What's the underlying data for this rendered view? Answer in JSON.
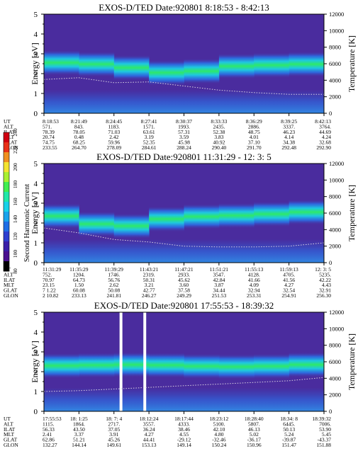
{
  "colorbar": {
    "label": "Second Harmonic Current",
    "ticks": [
      "80",
      "100",
      "120",
      "140",
      "160",
      "180",
      "200",
      "220",
      "240"
    ],
    "colors": [
      "#000000",
      "#4a1090",
      "#3a1fa8",
      "#2d3fd0",
      "#1e6ee6",
      "#19a3ec",
      "#18d2e8",
      "#20e8a8",
      "#40ee50",
      "#a8f030",
      "#f4e430",
      "#f09020",
      "#e83018",
      "#d00010"
    ]
  },
  "colors": {
    "background": "#4a2c9e",
    "band_core": "#2ee86a",
    "band_mid": "#1ec8e0",
    "band_edge": "#2a70e8",
    "temperature_dots": "#d8d0e0"
  },
  "chart_data": [
    {
      "type": "heatmap",
      "title": "EXOS-D/TED   Date:920801   8:18:53 - 8:42:13",
      "ylabel": "Energy [eV]",
      "y2label": "Temperature [K]",
      "ylim": [
        0,
        5
      ],
      "y2lim": [
        0,
        12000
      ],
      "yticks": [
        "0",
        "1",
        "2",
        "3",
        "4",
        "5"
      ],
      "y2ticks": [
        "0",
        "2000",
        "4000",
        "6000",
        "8000",
        "10000",
        "12000"
      ],
      "band_center_ev": [
        2.55,
        2.55,
        2.4,
        2.2,
        1.9,
        2.35,
        2.4,
        2.45,
        2.5
      ],
      "temperature_k": [
        4100,
        4300,
        3700,
        3800,
        3300,
        2800,
        2500,
        2300,
        2300
      ],
      "gaps": [],
      "table": {
        "row_labels": [
          "UT",
          "ALT",
          "ILAT",
          "MLT",
          "GLAT",
          "GLON"
        ],
        "columns": [
          [
            "8:18:53",
            "571.",
            "78.39",
            "20.74",
            "74.75",
            "233.55"
          ],
          [
            "8:21:49",
            "843.",
            "78.05",
            "0.48",
            "68.25",
            "264.70"
          ],
          [
            "8:24:45",
            "1183.",
            "71.03",
            "2.42",
            "59.96",
            "278.09"
          ],
          [
            "8:27:41",
            "1571.",
            "63.61",
            "3.19",
            "52.35",
            "284.61"
          ],
          [
            "8:30:37",
            "1993.",
            "57.31",
            "3.59",
            "45.98",
            "288.24"
          ],
          [
            "8:33:33",
            "2435.",
            "52.38",
            "3.83",
            "40.92",
            "290.40"
          ],
          [
            "8:36:29",
            "2886.",
            "48.75",
            "4.01",
            "37.10",
            "291.70"
          ],
          [
            "8:39:25",
            "3337.",
            "46.23",
            "4.14",
            "34.38",
            "292.48"
          ],
          [
            "8:42:13",
            "3764.",
            "44.69",
            "4.24",
            "32.68",
            "292.90"
          ]
        ]
      }
    },
    {
      "type": "heatmap",
      "title": "EXOS-D/TED   Date:920801   11:31:29 - 12: 3: 5",
      "ylabel": "Energy [eV]",
      "y2label": "Temperature [K]",
      "ylim": [
        0,
        5
      ],
      "y2lim": [
        0,
        12000
      ],
      "yticks": [
        "0",
        "1",
        "2",
        "3",
        "4",
        "5"
      ],
      "y2ticks": [
        "0",
        "2000",
        "4000",
        "6000",
        "8000",
        "10000",
        "12000"
      ],
      "band_center_ev": [
        2.4,
        2.3,
        1.6,
        2.1,
        2.3,
        2.35,
        2.4,
        2.5,
        2.6
      ],
      "temperature_k": [
        4200,
        3600,
        2800,
        2500,
        2000,
        1900,
        1900,
        2000,
        2400
      ],
      "gaps": [],
      "table": {
        "row_labels": [
          "UT",
          "ALT",
          "ILAT",
          "MLT",
          "GLAT",
          "GLON"
        ],
        "columns": [
          [
            "11:31:29",
            "752.",
            "70.97",
            "23.15",
            "7 1.22",
            "2 10.82"
          ],
          [
            "11:35:29",
            "1204.",
            "64.73",
            "1.50",
            "60.08",
            "233.13"
          ],
          [
            "11:39:29",
            "1746.",
            "56.76",
            "2.62",
            "50.08",
            "241.81"
          ],
          [
            "11:43:21",
            "2319.",
            "50.31",
            "3.21",
            "42.77",
            "246.27"
          ],
          [
            "11:47:21",
            "2933.",
            "45.62",
            "3.60",
            "37.58",
            "249.29"
          ],
          [
            "11:51:21",
            "3547.",
            "42.84",
            "3.87",
            "34.44",
            "251.53"
          ],
          [
            "11:55:13",
            "4128.",
            "41.66",
            "4.09",
            "32.94",
            "253.31"
          ],
          [
            "11:59:13",
            "4705.",
            "41.56",
            "4.27",
            "32.54",
            "254.91"
          ],
          [
            "12: 3: 5",
            "5235.",
            "42.22",
            "4.43",
            "32.91",
            "256.30"
          ]
        ]
      }
    },
    {
      "type": "heatmap",
      "title": "EXOS-D/TED   Date:920801   17:55:53 - 18:39:32",
      "ylabel": "Energy [eV]",
      "y2label": "Temperature [K]",
      "ylim": [
        0,
        5
      ],
      "y2lim": [
        0,
        12000
      ],
      "yticks": [
        "0",
        "1",
        "2",
        "3",
        "4",
        "5"
      ],
      "y2ticks": [
        "0",
        "2000",
        "4000",
        "6000",
        "8000",
        "10000",
        "12000"
      ],
      "band_center_ev": [
        2.3,
        2.3,
        2.35,
        2.35,
        2.3,
        2.25,
        2.25,
        2.3,
        2.4
      ],
      "temperature_k": [
        2400,
        2500,
        2700,
        2900,
        3100,
        3300,
        3500,
        3700,
        4100
      ],
      "gaps": [
        0.27,
        0.355
      ],
      "table": {
        "row_labels": [
          "UT",
          "ALT",
          "ILAT",
          "MLT",
          "GLAT",
          "GLON"
        ],
        "columns": [
          [
            "17:55:53",
            "1115.",
            "56.33",
            "2.41",
            "62.86",
            "132.27"
          ],
          [
            "18: 1:25",
            "1864.",
            "43.50",
            "3.37",
            "51.21",
            "144.14"
          ],
          [
            "18: 7: 4",
            "2717.",
            "37.05",
            "3.91",
            "45.26",
            "149.61"
          ],
          [
            "18:12:24",
            "3557.",
            "36.24",
            "4.27",
            "44.41",
            "153.13"
          ],
          [
            "18:17:44",
            "4333.",
            "38.46",
            "4.55",
            "-29.12",
            "149.14"
          ],
          [
            "18:23:12",
            "5100.",
            "42.10",
            "4.80",
            "-32.46",
            "150.24"
          ],
          [
            "18:28:40",
            "5807.",
            "46.13",
            "5.02",
            "-36.17",
            "150.96"
          ],
          [
            "18:34: 8",
            "6445.",
            "50.13",
            "5.24",
            "-39.87",
            "151.47"
          ],
          [
            "18:39:32",
            "7006.",
            "53.90",
            "5.45",
            "-43.37",
            "151.88"
          ]
        ]
      }
    }
  ]
}
